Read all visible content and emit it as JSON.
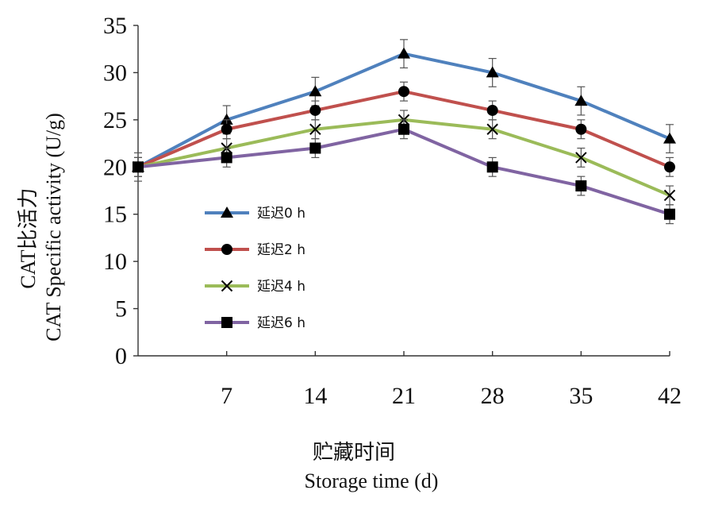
{
  "chart_data": {
    "type": "line",
    "x": [
      0,
      7,
      14,
      21,
      28,
      35,
      42
    ],
    "x_tick_labels": [
      "",
      "7",
      "14",
      "21",
      "28",
      "35",
      "42"
    ],
    "xlim": [
      0,
      42
    ],
    "ylim": [
      0,
      35
    ],
    "y_ticks": [
      0,
      5,
      10,
      15,
      20,
      25,
      30,
      35
    ],
    "ylabel_cn": "CAT比活力",
    "ylabel_en": "CAT Specific activity (U/g)",
    "xlabel_cn": "贮藏时间",
    "xlabel_en": "Storage time (d)",
    "legend_position": "left-middle",
    "grid": false,
    "series": [
      {
        "name": "延迟0 h",
        "color": "#4F81BD",
        "marker": "triangle",
        "values": [
          20,
          25,
          28,
          32,
          30,
          27,
          23
        ],
        "errors": [
          1.5,
          1.5,
          1.5,
          1.5,
          1.5,
          1.5,
          1.5
        ]
      },
      {
        "name": "延迟2 h",
        "color": "#C0504D",
        "marker": "circle",
        "values": [
          20,
          24,
          26,
          28,
          26,
          24,
          20
        ],
        "errors": [
          1,
          1,
          1,
          1,
          1,
          1,
          1
        ]
      },
      {
        "name": "延迟4 h",
        "color": "#9BBB59",
        "marker": "x",
        "values": [
          20,
          22,
          24,
          25,
          24,
          21,
          17
        ],
        "errors": [
          1,
          1,
          1,
          1,
          1,
          1,
          1
        ]
      },
      {
        "name": "延迟6 h",
        "color": "#8064A2",
        "marker": "square",
        "values": [
          20,
          21,
          22,
          24,
          20,
          18,
          15
        ],
        "errors": [
          1,
          1,
          1,
          1,
          1,
          1,
          1
        ]
      }
    ]
  }
}
